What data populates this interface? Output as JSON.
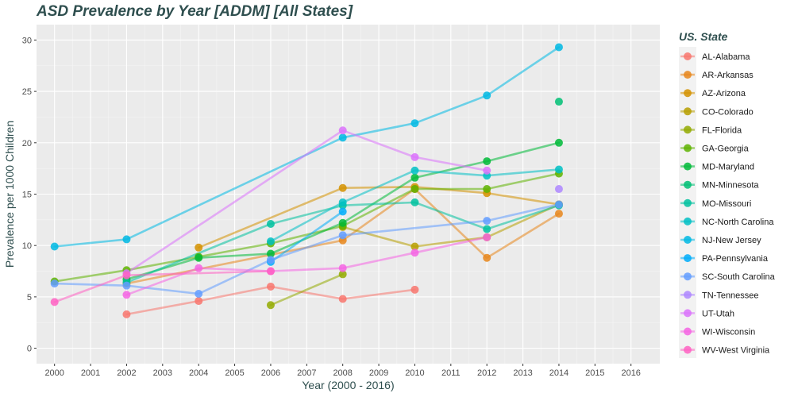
{
  "chart_data": {
    "type": "line",
    "title": "ASD Prevalence by Year [ADDM] [All States]",
    "xlabel": "Year (2000 - 2016)",
    "ylabel": "Prevalence per 1000 Children",
    "xlim": [
      1999.5,
      2016.8
    ],
    "ylim": [
      -1.5,
      31.5
    ],
    "x_ticks": [
      2000,
      2001,
      2002,
      2003,
      2004,
      2005,
      2006,
      2007,
      2008,
      2009,
      2010,
      2011,
      2012,
      2013,
      2014,
      2015,
      2016
    ],
    "y_ticks": [
      0,
      5,
      10,
      15,
      20,
      25,
      30
    ],
    "grid": true,
    "legend_position": "right",
    "legend_title": "US. State",
    "series": [
      {
        "name": "AL-Alabama",
        "color": "#F8766D",
        "points": [
          [
            2002,
            3.3
          ],
          [
            2004,
            4.6
          ],
          [
            2006,
            6.0
          ],
          [
            2008,
            4.8
          ],
          [
            2010,
            5.7
          ]
        ]
      },
      {
        "name": "AR-Arkansas",
        "color": "#E7861B",
        "points": [
          [
            2002,
            6.3
          ],
          [
            2008,
            10.5
          ],
          [
            2010,
            15.5
          ],
          [
            2012,
            8.8
          ],
          [
            2014,
            13.1
          ]
        ]
      },
      {
        "name": "AZ-Arizona",
        "color": "#D39200",
        "points": [
          [
            2004,
            9.8
          ],
          [
            2008,
            15.6
          ],
          [
            2010,
            15.7
          ],
          [
            2012,
            15.1
          ],
          [
            2014,
            14.0
          ]
        ]
      },
      {
        "name": "CO-Colorado",
        "color": "#B79F00",
        "points": [
          [
            2008,
            11.8
          ],
          [
            2010,
            9.9
          ],
          [
            2012,
            10.8
          ],
          [
            2014,
            14.0
          ]
        ]
      },
      {
        "name": "FL-Florida",
        "color": "#93AA00",
        "points": [
          [
            2006,
            4.2
          ],
          [
            2008,
            7.2
          ]
        ]
      },
      {
        "name": "GA-Georgia",
        "color": "#5EB300",
        "points": [
          [
            2000,
            6.5
          ],
          [
            2002,
            7.6
          ],
          [
            2004,
            8.9
          ],
          [
            2006,
            10.2
          ],
          [
            2008,
            11.9
          ],
          [
            2010,
            15.5
          ],
          [
            2012,
            15.5
          ],
          [
            2014,
            17.0
          ]
        ]
      },
      {
        "name": "MD-Maryland",
        "color": "#00BA38",
        "points": [
          [
            2002,
            6.7
          ],
          [
            2004,
            8.8
          ],
          [
            2006,
            9.2
          ],
          [
            2008,
            12.2
          ],
          [
            2010,
            16.6
          ],
          [
            2012,
            18.2
          ],
          [
            2014,
            20.0
          ]
        ]
      },
      {
        "name": "MN-Minnesota",
        "color": "#00BF74",
        "points": [
          [
            2014,
            24.0
          ]
        ]
      },
      {
        "name": "MO-Missouri",
        "color": "#00C19F",
        "points": [
          [
            2002,
            6.4
          ],
          [
            2006,
            12.1
          ],
          [
            2008,
            13.9
          ],
          [
            2010,
            14.2
          ],
          [
            2012,
            11.6
          ],
          [
            2014,
            13.9
          ]
        ]
      },
      {
        "name": "NC-North Carolina",
        "color": "#00BFC4",
        "points": [
          [
            2006,
            10.4
          ],
          [
            2008,
            14.2
          ],
          [
            2010,
            17.3
          ],
          [
            2012,
            16.8
          ],
          [
            2014,
            17.4
          ]
        ]
      },
      {
        "name": "NJ-New Jersey",
        "color": "#00B9E3",
        "points": [
          [
            2000,
            9.9
          ],
          [
            2002,
            10.6
          ],
          [
            2008,
            20.5
          ],
          [
            2010,
            21.9
          ],
          [
            2012,
            24.6
          ],
          [
            2014,
            29.3
          ]
        ]
      },
      {
        "name": "PA-Pennsylvania",
        "color": "#00ADFA",
        "points": [
          [
            2006,
            8.4
          ],
          [
            2008,
            13.3
          ]
        ]
      },
      {
        "name": "SC-South Carolina",
        "color": "#619CFF",
        "points": [
          [
            2000,
            6.3
          ],
          [
            2002,
            6.1
          ],
          [
            2004,
            5.3
          ],
          [
            2006,
            8.6
          ],
          [
            2008,
            11.0
          ],
          [
            2012,
            12.4
          ],
          [
            2014,
            14.0
          ]
        ]
      },
      {
        "name": "TN-Tennessee",
        "color": "#AE87FF",
        "points": [
          [
            2014,
            15.5
          ]
        ]
      },
      {
        "name": "UT-Utah",
        "color": "#DB72FB",
        "points": [
          [
            2002,
            7.3
          ],
          [
            2008,
            21.2
          ],
          [
            2010,
            18.6
          ],
          [
            2012,
            17.3
          ]
        ]
      },
      {
        "name": "WI-Wisconsin",
        "color": "#F564E3",
        "points": [
          [
            2002,
            5.2
          ],
          [
            2004,
            7.8
          ],
          [
            2006,
            7.5
          ],
          [
            2008,
            7.8
          ],
          [
            2010,
            9.3
          ],
          [
            2012,
            10.8
          ]
        ]
      },
      {
        "name": "WV-West Virginia",
        "color": "#FF61C3",
        "points": [
          [
            2000,
            4.5
          ],
          [
            2002,
            7.1
          ],
          [
            2006,
            7.5
          ]
        ]
      }
    ]
  }
}
